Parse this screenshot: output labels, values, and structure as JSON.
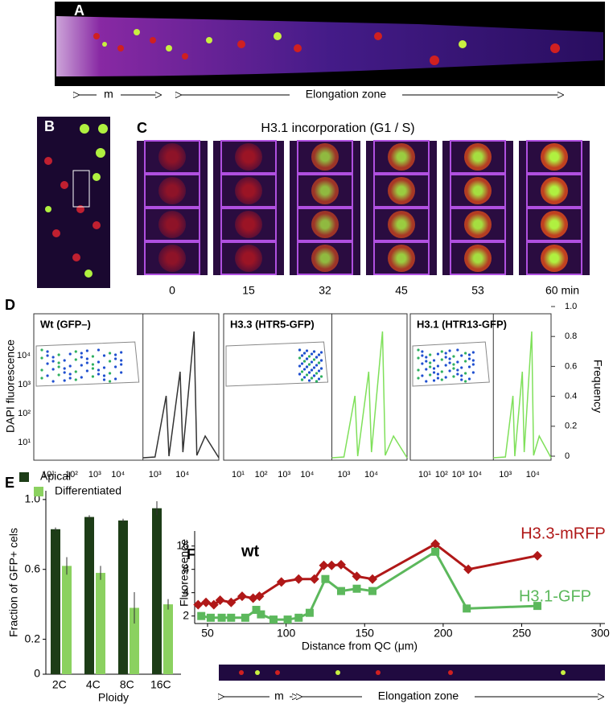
{
  "panel_a": {
    "label": "A",
    "zone_m": "m",
    "zone_elongation": "Elongation zone"
  },
  "panel_b": {
    "label": "B"
  },
  "panel_c": {
    "label": "C",
    "title": "H3.1 incorporation (G1 / S)",
    "times": [
      "0",
      "15",
      "32",
      "45",
      "53",
      "60 min"
    ]
  },
  "panel_d": {
    "label": "D",
    "y_label": "DAPI fluorescence",
    "right_label": "Frequency",
    "subplots": [
      "Wt (GFP–)",
      "H3.3 (HTR5-GFP)",
      "H3.1 (HTR13-GFP)"
    ],
    "y_tick_labels": [
      "10⁴",
      "10³",
      "10²",
      "10¹"
    ],
    "x_tick_labels": [
      "10¹",
      "10²",
      "10³",
      "10⁴"
    ],
    "hist_tick_labels": [
      "10³",
      "10⁴"
    ],
    "frequency_ticks": [
      0,
      0.2,
      0.4,
      0.6,
      0.8,
      {
        "value": 1,
        "label": "1.0"
      }
    ]
  },
  "chart_data": [
    {
      "type": "bar",
      "label": "E",
      "y_label": "Fraction of GFP+ cels",
      "x_label": "Ploidy",
      "categories": [
        "2C",
        "4C",
        "8C",
        "16C"
      ],
      "series": [
        {
          "name": "Apical",
          "color": "#1d3d17",
          "values": [
            0.83,
            0.9,
            0.88,
            0.95
          ],
          "errors": [
            0.01,
            0.01,
            0.01,
            0.04
          ]
        },
        {
          "name": "Differentiated",
          "color": "#8bd160",
          "values": [
            0.62,
            0.58,
            0.38,
            0.4
          ],
          "errors": [
            0.05,
            0.04,
            0.09,
            0.03
          ]
        }
      ],
      "ylim": [
        0,
        1.05
      ],
      "yticks": [
        0,
        0.2,
        0.6,
        {
          "value": 1,
          "label": "1.0"
        }
      ]
    },
    {
      "type": "line",
      "label": "F",
      "annotation": "wt",
      "y_label": "Fluorescence",
      "x_label": "Distance from QC (μm)",
      "log_y": true,
      "series": [
        {
          "name": "H3.3-mRFP",
          "color": "#b01818",
          "marker": "diamond",
          "x": [
            44,
            49,
            54,
            58,
            65,
            72,
            79,
            83,
            97,
            108,
            118,
            124,
            129,
            135,
            145,
            155,
            195,
            216,
            260
          ],
          "values": [
            2.8,
            3,
            2.8,
            3.2,
            3,
            3.6,
            3.4,
            3.6,
            5.5,
            6,
            6,
            9,
            9,
            9.2,
            6.5,
            6,
            17,
            8,
            12
          ]
        },
        {
          "name": "H3.1-GFP",
          "color": "#5cb85c",
          "marker": "square",
          "x": [
            46,
            52,
            59,
            65,
            74,
            81,
            84,
            92,
            101,
            108,
            115,
            125,
            135,
            145,
            155,
            195,
            215,
            260
          ],
          "values": [
            2,
            1.9,
            1.9,
            1.9,
            1.9,
            2.4,
            2.1,
            1.8,
            1.8,
            1.9,
            2.2,
            6,
            4.2,
            4.5,
            4.2,
            13.5,
            2.5,
            2.7
          ]
        }
      ],
      "xlim": [
        41.8,
        303
      ],
      "xticks": [
        50,
        100,
        150,
        200,
        250,
        300
      ],
      "ylim": [
        1.6,
        25
      ],
      "yticks": [
        2,
        4,
        8,
        16
      ]
    }
  ],
  "panel_f_strip": {
    "zone_m": "m",
    "zone_elongation": "Elongation zone"
  }
}
